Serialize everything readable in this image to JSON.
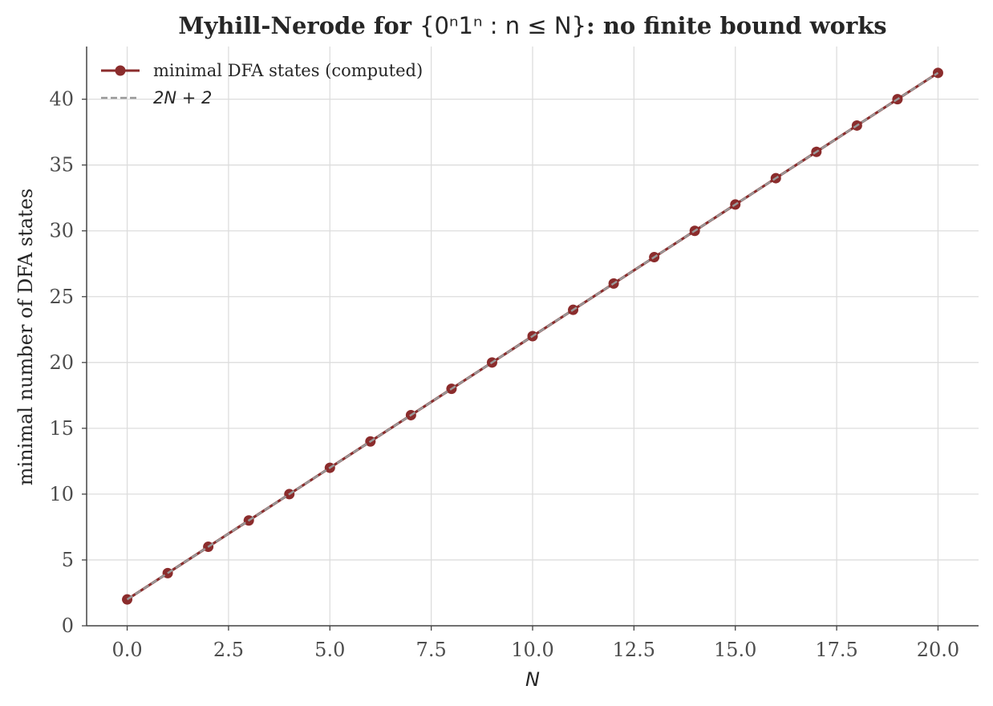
{
  "chart_data": {
    "type": "line",
    "title": "Myhill-Nerode for {0ⁿ1ⁿ : n ≤ N}: no finite bound works",
    "title_parts": {
      "prefix": "Myhill-Nerode for ",
      "math": "{0ⁿ1ⁿ : n ≤ N}",
      "suffix": ": no finite bound works"
    },
    "xlabel": "N",
    "ylabel": "minimal number of DFA states",
    "xlim": [
      -1,
      21
    ],
    "ylim": [
      0,
      44
    ],
    "xticks": [
      0.0,
      2.5,
      5.0,
      7.5,
      10.0,
      12.5,
      15.0,
      17.5,
      20.0
    ],
    "xtick_labels": [
      "0.0",
      "2.5",
      "5.0",
      "7.5",
      "10.0",
      "12.5",
      "15.0",
      "17.5",
      "20.0"
    ],
    "yticks": [
      0,
      5,
      10,
      15,
      20,
      25,
      30,
      35,
      40
    ],
    "ytick_labels": [
      "0",
      "5",
      "10",
      "15",
      "20",
      "25",
      "30",
      "35",
      "40"
    ],
    "grid": true,
    "legend_position": "upper-left",
    "x": [
      0,
      1,
      2,
      3,
      4,
      5,
      6,
      7,
      8,
      9,
      10,
      11,
      12,
      13,
      14,
      15,
      16,
      17,
      18,
      19,
      20
    ],
    "series": [
      {
        "name": "minimal DFA states (computed)",
        "style": "solid-with-markers",
        "color": "#8b2c2c",
        "values": [
          2,
          4,
          6,
          8,
          10,
          12,
          14,
          16,
          18,
          20,
          22,
          24,
          26,
          28,
          30,
          32,
          34,
          36,
          38,
          40,
          42
        ]
      },
      {
        "name": "2N + 2",
        "style": "dashed",
        "color": "#999999",
        "values": [
          2,
          4,
          6,
          8,
          10,
          12,
          14,
          16,
          18,
          20,
          22,
          24,
          26,
          28,
          30,
          32,
          34,
          36,
          38,
          40,
          42
        ]
      }
    ]
  }
}
